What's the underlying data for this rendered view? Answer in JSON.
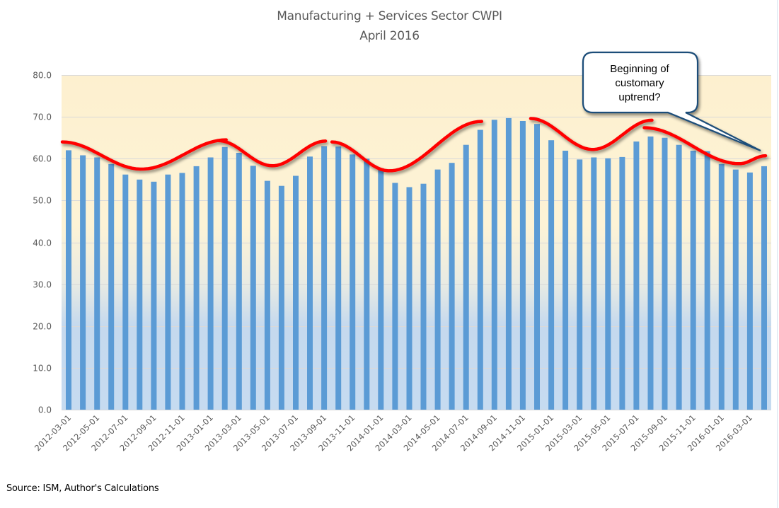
{
  "chart_data": {
    "type": "bar",
    "title": "Manufacturing + Services Sector CWPI",
    "subtitle": "April 2016",
    "xlabel": "",
    "ylabel": "",
    "ylim": [
      0,
      80
    ],
    "yticks": [
      "0.0",
      "10.0",
      "20.0",
      "30.0",
      "40.0",
      "50.0",
      "60.0",
      "70.0",
      "80.0"
    ],
    "ytick_values": [
      0,
      10,
      20,
      30,
      40,
      50,
      60,
      70,
      80
    ],
    "grid": true,
    "legend": "none",
    "bar_color": "#5b9bd5",
    "categories": [
      "2012-03-01",
      "2012-04-01",
      "2012-05-01",
      "2012-06-01",
      "2012-07-01",
      "2012-08-01",
      "2012-09-01",
      "2012-10-01",
      "2012-11-01",
      "2012-12-01",
      "2013-01-01",
      "2013-02-01",
      "2013-03-01",
      "2013-04-01",
      "2013-05-01",
      "2013-06-01",
      "2013-07-01",
      "2013-08-01",
      "2013-09-01",
      "2013-10-01",
      "2013-11-01",
      "2013-12-01",
      "2014-01-01",
      "2014-02-01",
      "2014-03-01",
      "2014-04-01",
      "2014-05-01",
      "2014-06-01",
      "2014-07-01",
      "2014-08-01",
      "2014-09-01",
      "2014-10-01",
      "2014-11-01",
      "2014-12-01",
      "2015-01-01",
      "2015-02-01",
      "2015-03-01",
      "2015-04-01",
      "2015-05-01",
      "2015-06-01",
      "2015-07-01",
      "2015-08-01",
      "2015-09-01",
      "2015-10-01",
      "2015-11-01",
      "2015-12-01",
      "2016-01-01",
      "2016-02-01",
      "2016-03-01",
      "2016-04-01"
    ],
    "xtick_labels_shown": [
      "2012-03-01",
      "2012-05-01",
      "2012-07-01",
      "2012-09-01",
      "2012-11-01",
      "2013-01-01",
      "2013-03-01",
      "2013-05-01",
      "2013-07-01",
      "2013-09-01",
      "2013-11-01",
      "2014-01-01",
      "2014-03-01",
      "2014-05-01",
      "2014-07-01",
      "2014-09-01",
      "2014-11-01",
      "2015-01-01",
      "2015-03-01",
      "2015-05-01",
      "2015-07-01",
      "2015-09-01",
      "2015-11-01",
      "2016-01-01",
      "2016-03-01"
    ],
    "series": [
      {
        "name": "CWPI",
        "values": [
          62.0,
          60.8,
          60.3,
          58.7,
          56.2,
          55.0,
          54.5,
          56.2,
          56.6,
          58.2,
          60.3,
          62.8,
          61.4,
          58.3,
          54.7,
          53.5,
          55.9,
          60.5,
          63.0,
          62.9,
          61.0,
          60.0,
          57.7,
          54.2,
          53.2,
          54.0,
          57.4,
          59.0,
          63.3,
          66.9,
          69.3,
          69.7,
          69.0,
          68.3,
          64.4,
          61.9,
          59.8,
          60.3,
          60.1,
          60.4,
          64.1,
          65.3,
          65.0,
          63.3,
          61.9,
          61.8,
          58.7,
          57.4,
          56.7,
          58.2
        ]
      }
    ],
    "annotations": {
      "trend_curves_color": "#ff0000",
      "trend_curves": [
        {
          "from": "2012-03-01",
          "to": "2013-02-01",
          "start": 64.0,
          "min": 57.5,
          "end": 64.5
        },
        {
          "from": "2013-02-01",
          "to": "2013-09-01",
          "start": 64.3,
          "min": 58.3,
          "end": 64.2
        },
        {
          "from": "2013-10-01",
          "to": "2014-08-01",
          "start": 64.0,
          "min": 57.1,
          "end": 68.9
        },
        {
          "from": "2014-12-01",
          "to": "2015-08-01",
          "start": 69.6,
          "min": 62.2,
          "end": 69.2
        },
        {
          "from": "2015-08-01",
          "to": "2016-04-01",
          "start": 67.4,
          "min": 58.8,
          "end": 60.7
        }
      ],
      "callout": {
        "lines": [
          "Beginning of",
          "customary",
          "uptrend?"
        ],
        "border_color": "#1f4e79",
        "points_to": "2016-03-01"
      }
    },
    "source": "Source: ISM, Author's Calculations"
  }
}
